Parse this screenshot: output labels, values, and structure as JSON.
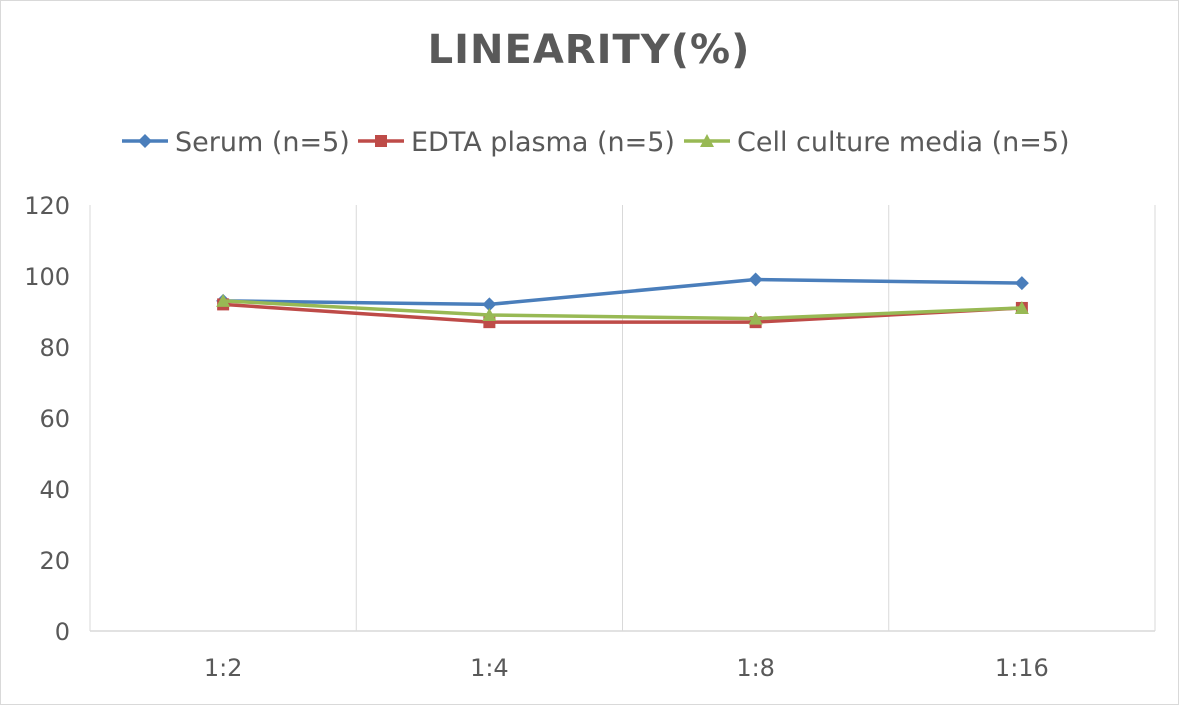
{
  "chart_data": {
    "type": "line",
    "title": "LINEARITY(%)",
    "categories": [
      "1:2",
      "1:4",
      "1:8",
      "1:16"
    ],
    "series": [
      {
        "name": "Serum (n=5)",
        "values": [
          93,
          92,
          99,
          98
        ],
        "color": "#4a7ebb",
        "marker": "diamond"
      },
      {
        "name": "EDTA plasma (n=5)",
        "values": [
          92,
          87,
          87,
          91
        ],
        "color": "#be4b48",
        "marker": "square"
      },
      {
        "name": "Cell culture media (n=5)",
        "values": [
          93,
          89,
          88,
          91
        ],
        "color": "#98b954",
        "marker": "triangle"
      }
    ],
    "ylim": [
      0,
      120
    ],
    "yticks": [
      0,
      20,
      40,
      60,
      80,
      100,
      120
    ],
    "grid": "vertical",
    "legend": "top"
  }
}
